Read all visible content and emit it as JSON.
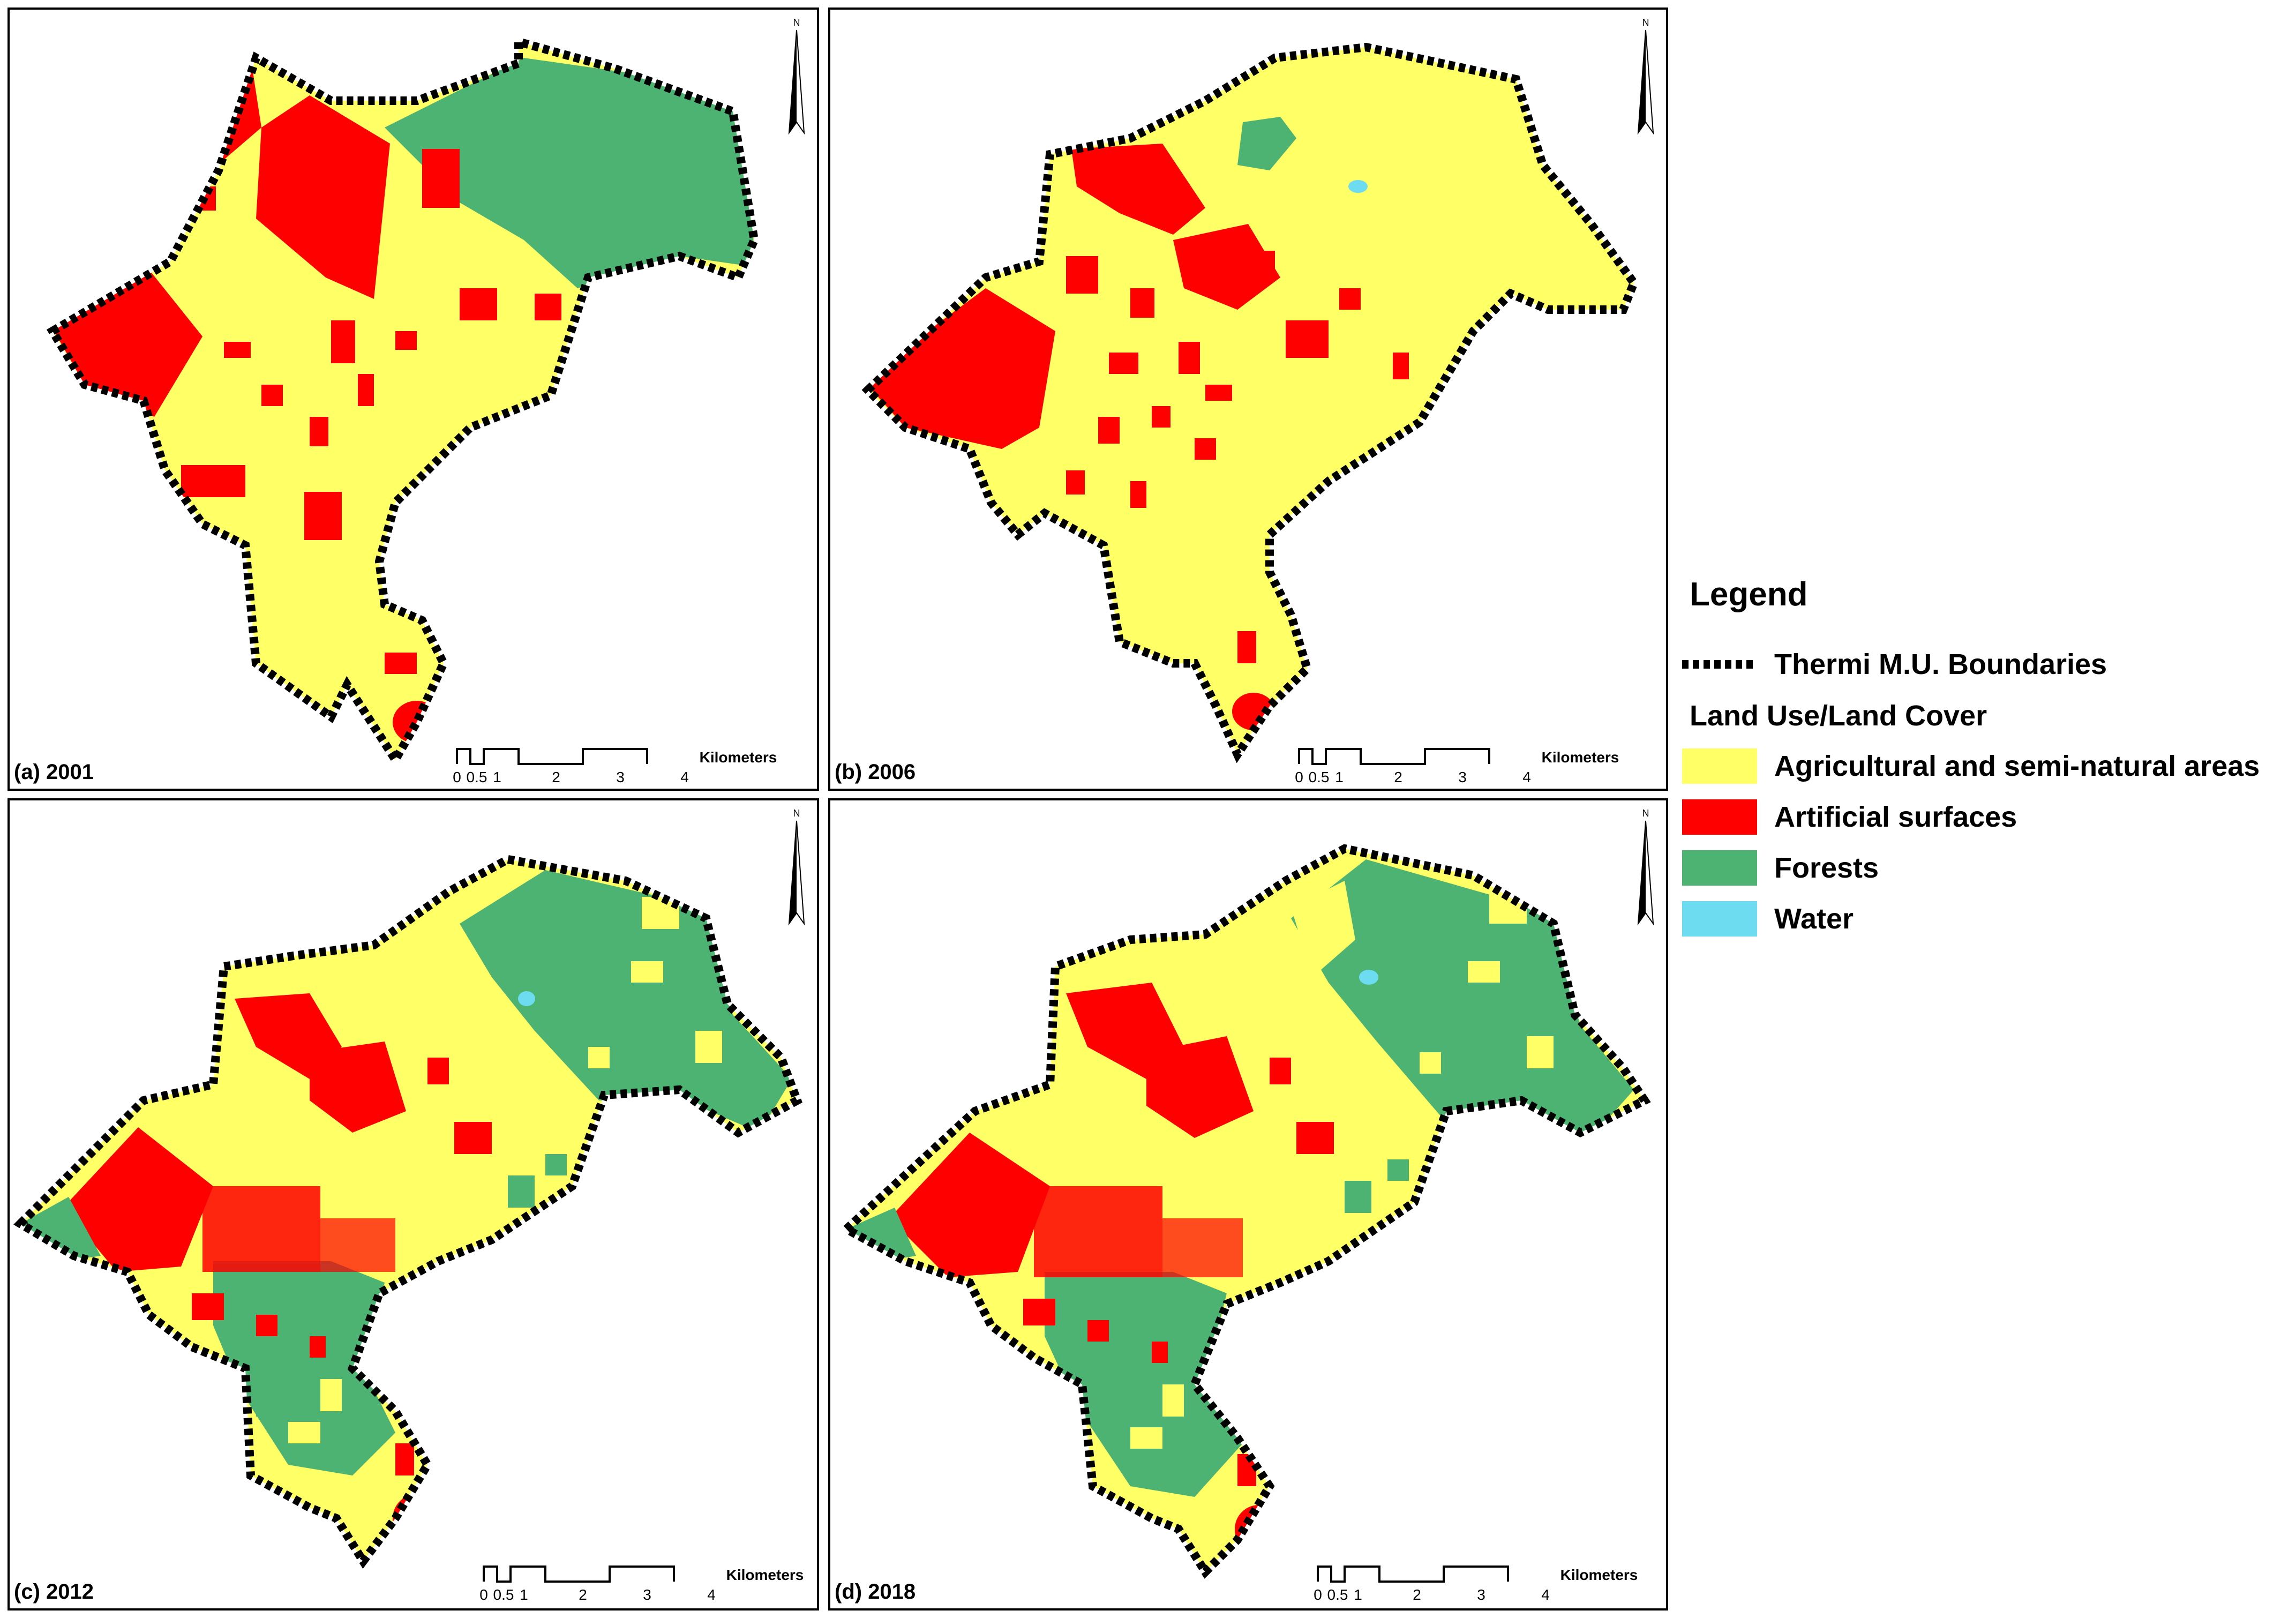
{
  "panels": [
    {
      "label": "(a) 2001"
    },
    {
      "label": "(b) 2006"
    },
    {
      "label": "(c) 2012"
    },
    {
      "label": "(d) 2018"
    }
  ],
  "north_label": "N",
  "scale_bar": {
    "ticks": [
      "0",
      "0.5",
      "1",
      "2",
      "3",
      "4"
    ],
    "unit": "Kilometers"
  },
  "legend": {
    "title": "Legend",
    "boundary_label": "Thermi M.U. Boundaries",
    "section_title": "Land Use/Land Cover",
    "classes": [
      {
        "label": "Agricultural and semi-natural areas",
        "color": "#FFFF66"
      },
      {
        "label": "Artificial surfaces",
        "color": "#FF0000"
      },
      {
        "label": "Forests",
        "color": "#4CB372"
      },
      {
        "label": "Water",
        "color": "#6EDCF0"
      }
    ]
  },
  "colors": {
    "agricultural": "#FFFF66",
    "artificial": "#FF0000",
    "forest": "#4CB372",
    "water": "#6EDCF0",
    "boundary": "#000000"
  }
}
